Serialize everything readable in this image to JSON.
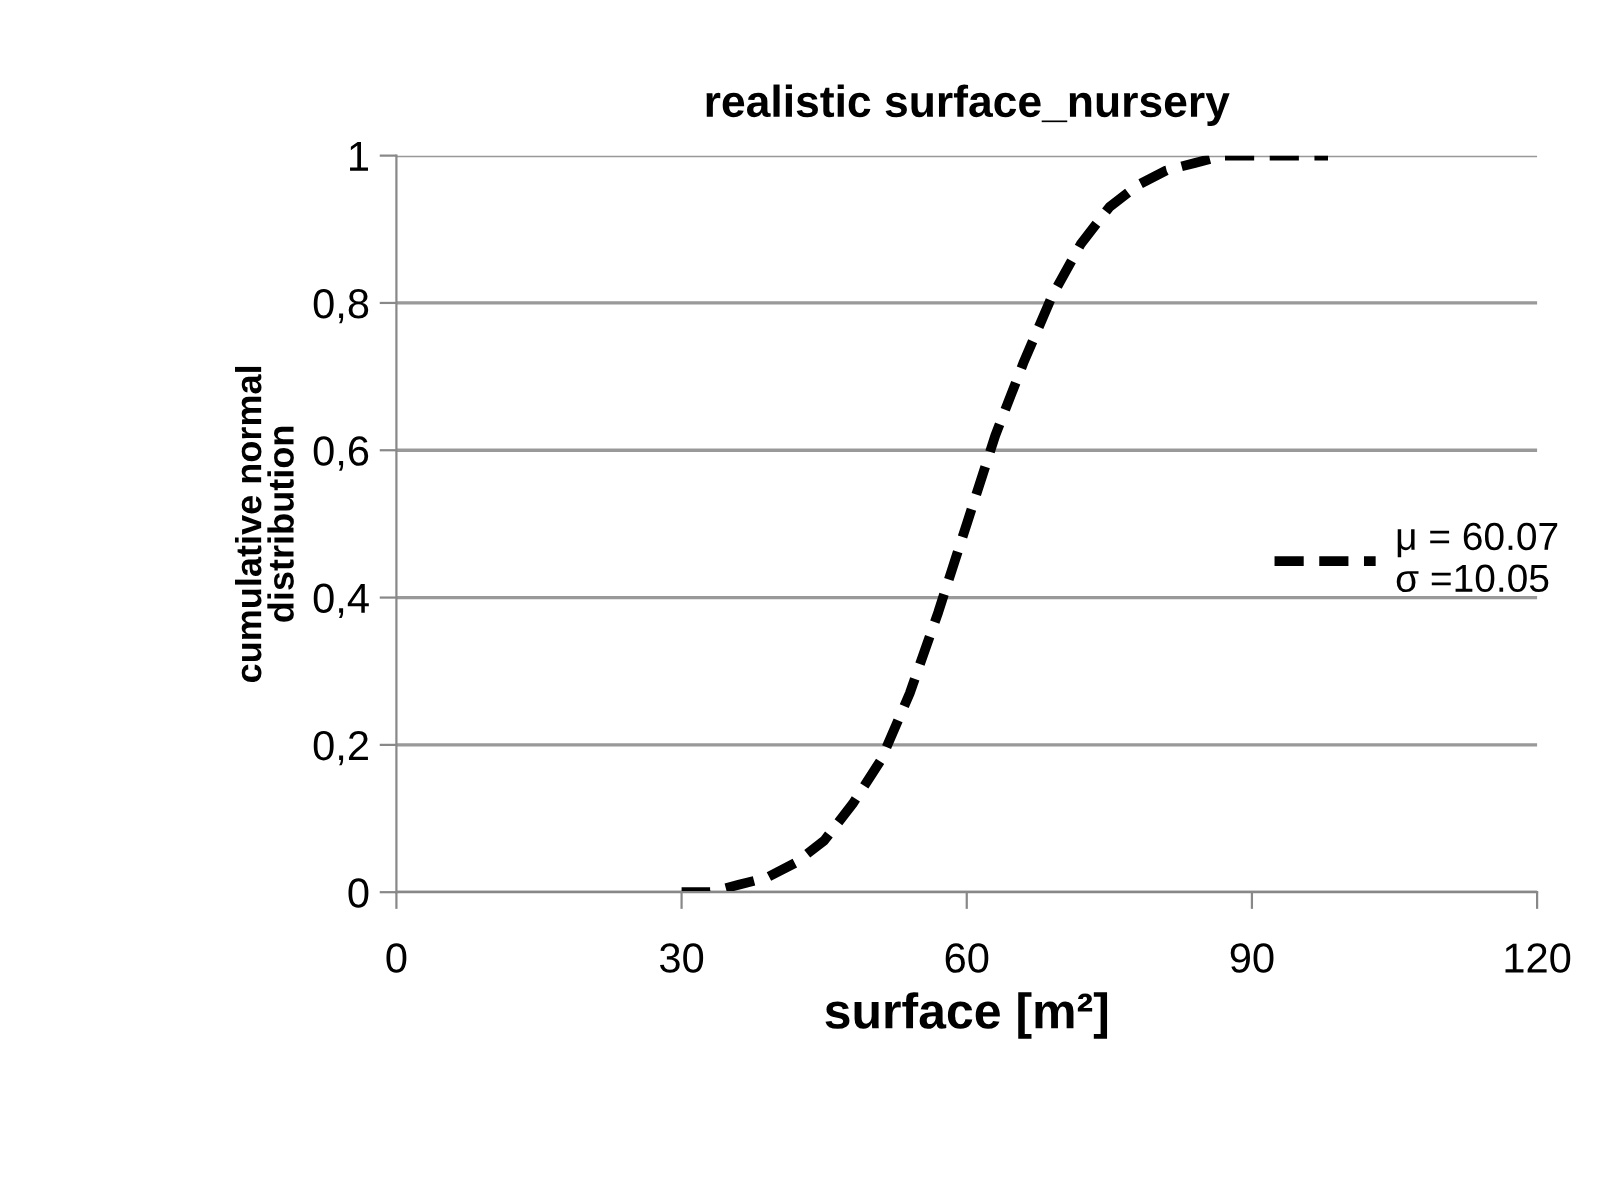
{
  "chart_data": {
    "type": "line",
    "title": "realistic surface_nursery",
    "xlabel": "surface [m²]",
    "ylabel": "cumulative normal\ndistribution",
    "x": [
      30,
      33,
      36,
      39,
      42,
      45,
      48,
      51,
      54,
      57,
      60,
      63,
      66,
      69,
      72,
      75,
      78,
      81,
      84,
      87,
      90,
      93,
      96,
      98
    ],
    "series": [
      {
        "name": "μ = 60.07\nσ =10.05",
        "color": "#000000",
        "values": [
          0.0,
          0.0,
          0.01,
          0.02,
          0.04,
          0.07,
          0.12,
          0.18,
          0.27,
          0.38,
          0.5,
          0.62,
          0.72,
          0.81,
          0.88,
          0.93,
          0.96,
          0.98,
          0.99,
          1.0,
          1.0,
          1.0,
          1.0,
          1.0
        ]
      }
    ],
    "xlim": [
      0,
      120
    ],
    "xticks": [
      0,
      30,
      60,
      90,
      120
    ],
    "ylim": [
      0,
      1
    ],
    "yticks": [
      0,
      {
        "value": 0.2,
        "label": "0,2"
      },
      {
        "value": 0.4,
        "label": "0,4"
      },
      {
        "value": 0.6,
        "label": "0,6"
      },
      {
        "value": 0.8,
        "label": "0,8"
      },
      1
    ],
    "grid": "y",
    "legend": "right",
    "line_style": "dashed",
    "marker": "none"
  }
}
